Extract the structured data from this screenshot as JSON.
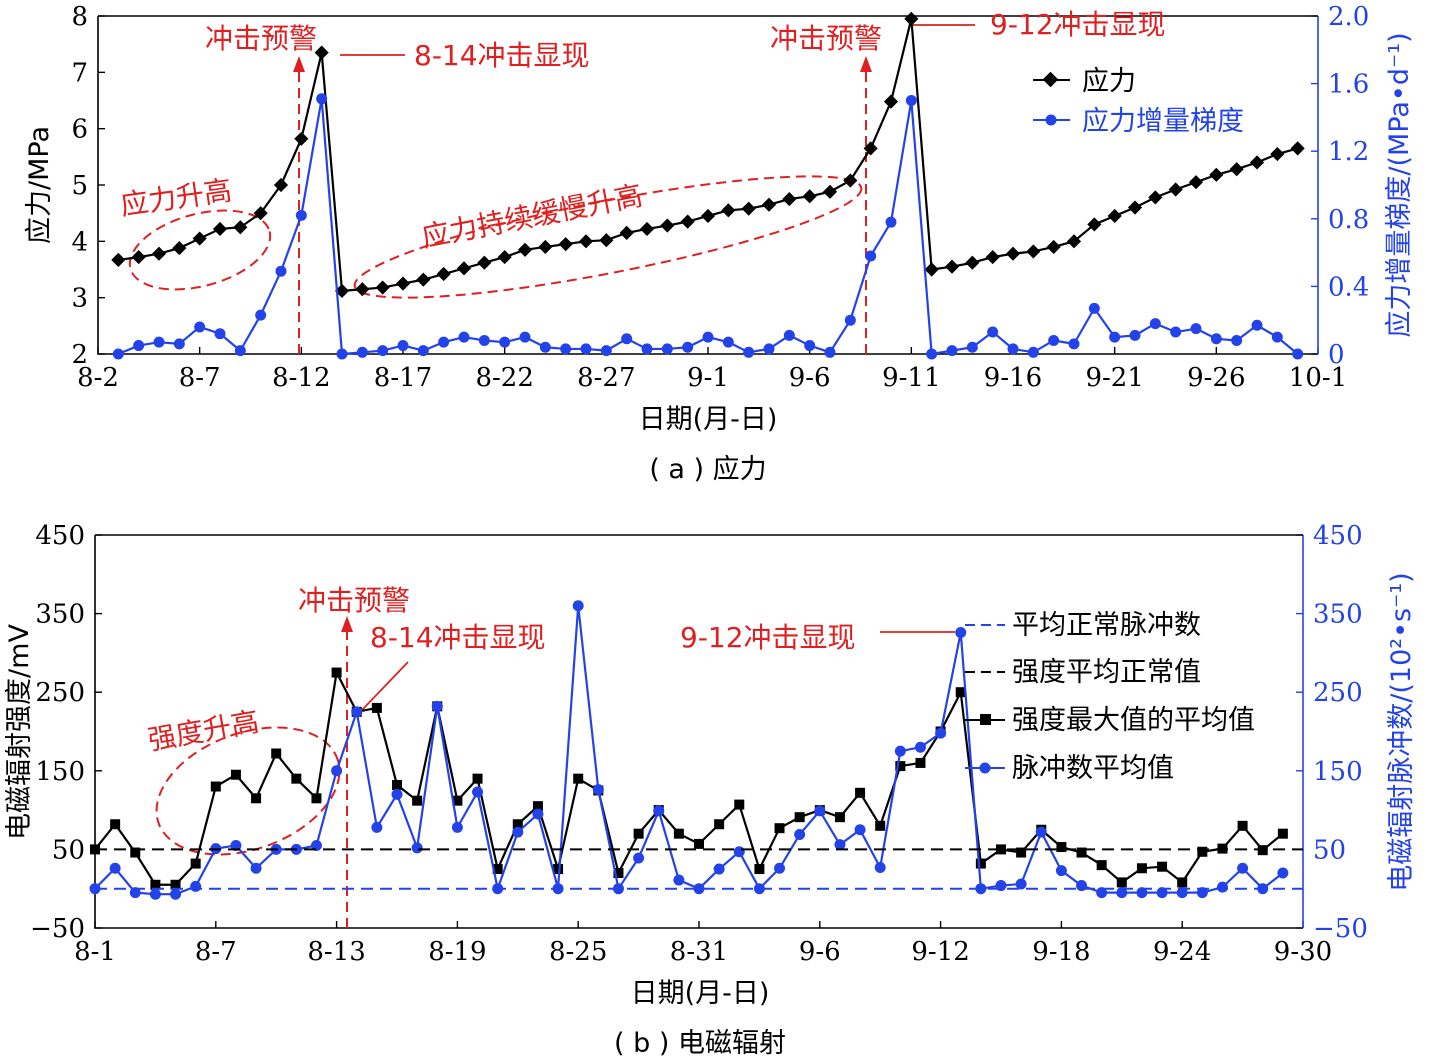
{
  "chart_data": [
    {
      "type": "line",
      "panel_caption": "( a ) 应力",
      "xlabel": "日期(月-日)",
      "ylabel": "应力/MPa",
      "y2label": "应力增量梯度/(MPa•d⁻¹)",
      "xticks": [
        "8-2",
        "8-7",
        "8-12",
        "8-17",
        "8-22",
        "8-27",
        "9-1",
        "9-6",
        "9-11",
        "9-16",
        "9-21",
        "9-26",
        "10-1"
      ],
      "xlim": [
        0,
        60
      ],
      "ylim": [
        2,
        8
      ],
      "yticks": [
        2,
        3,
        4,
        5,
        6,
        7,
        8
      ],
      "y2lim": [
        0,
        2
      ],
      "y2ticks": [
        "0",
        "0.4",
        "0.8",
        "1.2",
        "1.6",
        "2.0"
      ],
      "legend_position": "top-right",
      "colors": {
        "stress": "#000000",
        "gradient": "#2343e8",
        "annotation": "#e02020"
      },
      "series": [
        {
          "name": "应力",
          "axis": "left",
          "marker": "diamond",
          "x": [
            1,
            2,
            3,
            4,
            5,
            6,
            7,
            8,
            9,
            10,
            11,
            12,
            13,
            14,
            15,
            16,
            17,
            18,
            19,
            20,
            21,
            22,
            23,
            24,
            25,
            26,
            27,
            28,
            29,
            30,
            31,
            32,
            33,
            34,
            35,
            36,
            37,
            38,
            39,
            40,
            41,
            42,
            43,
            44,
            45,
            46,
            47,
            48,
            49,
            50,
            51,
            52,
            53,
            54,
            55,
            56,
            57,
            58,
            59
          ],
          "values": [
            3.67,
            3.72,
            3.78,
            3.88,
            4.05,
            4.22,
            4.25,
            4.5,
            5.0,
            5.82,
            7.35,
            3.12,
            3.15,
            3.18,
            3.25,
            3.32,
            3.42,
            3.52,
            3.62,
            3.72,
            3.85,
            3.9,
            3.95,
            4.0,
            4.02,
            4.15,
            4.22,
            4.28,
            4.35,
            4.45,
            4.55,
            4.58,
            4.65,
            4.75,
            4.8,
            4.88,
            5.08,
            5.65,
            6.48,
            7.95,
            3.5,
            3.55,
            3.62,
            3.72,
            3.78,
            3.82,
            3.9,
            4.0,
            4.3,
            4.45,
            4.6,
            4.78,
            4.92,
            5.05,
            5.18,
            5.28,
            5.4,
            5.55,
            5.65
          ]
        },
        {
          "name": "应力增量梯度",
          "axis": "right",
          "marker": "circle",
          "x": [
            1,
            2,
            3,
            4,
            5,
            6,
            7,
            8,
            9,
            10,
            11,
            12,
            13,
            14,
            15,
            16,
            17,
            18,
            19,
            20,
            21,
            22,
            23,
            24,
            25,
            26,
            27,
            28,
            29,
            30,
            31,
            32,
            33,
            34,
            35,
            36,
            37,
            38,
            39,
            40,
            41,
            42,
            43,
            44,
            45,
            46,
            47,
            48,
            49,
            50,
            51,
            52,
            53,
            54,
            55,
            56,
            57,
            58,
            59
          ],
          "values": [
            0.0,
            0.05,
            0.07,
            0.06,
            0.16,
            0.12,
            0.02,
            0.23,
            0.49,
            0.82,
            1.51,
            0.0,
            0.01,
            0.02,
            0.05,
            0.02,
            0.07,
            0.1,
            0.08,
            0.07,
            0.1,
            0.04,
            0.03,
            0.03,
            0.02,
            0.09,
            0.03,
            0.03,
            0.04,
            0.1,
            0.07,
            0.01,
            0.03,
            0.11,
            0.05,
            0.01,
            0.2,
            0.58,
            0.78,
            1.5,
            0.0,
            0.02,
            0.04,
            0.13,
            0.03,
            0.01,
            0.08,
            0.06,
            0.27,
            0.1,
            0.11,
            0.18,
            0.13,
            0.15,
            0.09,
            0.08,
            0.17,
            0.1,
            0.0
          ]
        }
      ],
      "annotations": {
        "warn1": "冲击预警",
        "event1": "8-14冲击显现",
        "warn2": "冲击预警",
        "event2": "9-12冲击显现",
        "ell1": "应力升高",
        "ell2": "应力持续缓慢升高"
      }
    },
    {
      "type": "line",
      "panel_caption": "( b ) 电磁辐射",
      "xlabel": "日期(月-日)",
      "ylabel": "电磁辐射强度/mV",
      "y2label": "电磁辐射脉冲数/(10²•s⁻¹)",
      "xticks": [
        "8-1",
        "8-7",
        "8-13",
        "8-19",
        "8-25",
        "8-31",
        "9-6",
        "9-12",
        "9-18",
        "9-24",
        "9-30"
      ],
      "xlim": [
        0,
        60
      ],
      "ylim": [
        -50,
        450
      ],
      "yticks": [
        "−50",
        "50",
        "150",
        "250",
        "350",
        "450"
      ],
      "y2lim": [
        -50,
        450
      ],
      "y2ticks": [
        "−50",
        "50",
        "150",
        "250",
        "350",
        "450"
      ],
      "legend_position": "right",
      "colors": {
        "intensity": "#000000",
        "pulse": "#2343e8",
        "annotation": "#e02020"
      },
      "series": [
        {
          "name": "强度最大值的平均值",
          "axis": "left",
          "marker": "square",
          "x": [
            0,
            1,
            2,
            3,
            4,
            5,
            6,
            7,
            8,
            9,
            10,
            11,
            12,
            13,
            14,
            15,
            16,
            17,
            18,
            19,
            20,
            21,
            22,
            23,
            24,
            25,
            26,
            27,
            28,
            29,
            30,
            31,
            32,
            33,
            34,
            35,
            36,
            37,
            38,
            39,
            40,
            41,
            42,
            43,
            44,
            45,
            46,
            47,
            48,
            49,
            50,
            51,
            52,
            53,
            54,
            55,
            56,
            57,
            58,
            59
          ],
          "values": [
            50,
            82,
            46,
            5,
            5,
            32,
            130,
            145,
            115,
            172,
            140,
            115,
            275,
            225,
            230,
            132,
            112,
            232,
            112,
            140,
            25,
            82,
            105,
            25,
            140,
            125,
            20,
            70,
            100,
            70,
            57,
            82,
            107,
            25,
            77,
            91,
            100,
            91,
            122,
            80,
            156,
            160,
            200,
            250,
            32,
            50,
            46,
            75,
            53,
            46,
            30,
            8,
            26,
            28,
            8,
            47,
            51,
            80,
            49,
            70
          ]
        },
        {
          "name": "脉冲数平均值",
          "axis": "right",
          "marker": "circle",
          "x": [
            0,
            1,
            2,
            3,
            4,
            5,
            6,
            7,
            8,
            9,
            10,
            11,
            12,
            13,
            14,
            15,
            16,
            17,
            18,
            19,
            20,
            21,
            22,
            23,
            24,
            25,
            26,
            27,
            28,
            29,
            30,
            31,
            32,
            33,
            34,
            35,
            36,
            37,
            38,
            39,
            40,
            41,
            42,
            43,
            44,
            45,
            46,
            47,
            48,
            49,
            50,
            51,
            52,
            53,
            54,
            55,
            56,
            57,
            58,
            59
          ],
          "values": [
            0,
            26,
            -5,
            -7,
            -7,
            3,
            51,
            55,
            26,
            50,
            50,
            55,
            150,
            225,
            78,
            120,
            52,
            232,
            78,
            123,
            0,
            72,
            95,
            0,
            360,
            126,
            0,
            39,
            99,
            11,
            0,
            25,
            47,
            0,
            26,
            69,
            99,
            56,
            75,
            27,
            175,
            180,
            198,
            326,
            0,
            4,
            6,
            72,
            23,
            4,
            -5,
            -5,
            -5,
            -5,
            -5,
            -5,
            2,
            26,
            0,
            20
          ]
        },
        {
          "name": "平均正常脉冲数",
          "axis": "right",
          "style": "dashed",
          "value": 0
        },
        {
          "name": "强度平均正常值",
          "axis": "left",
          "style": "dashed",
          "value": 50
        }
      ],
      "annotations": {
        "warn": "冲击预警",
        "event1": "8-14冲击显现",
        "event2": "9-12冲击显现",
        "ell": "强度升高"
      }
    }
  ]
}
